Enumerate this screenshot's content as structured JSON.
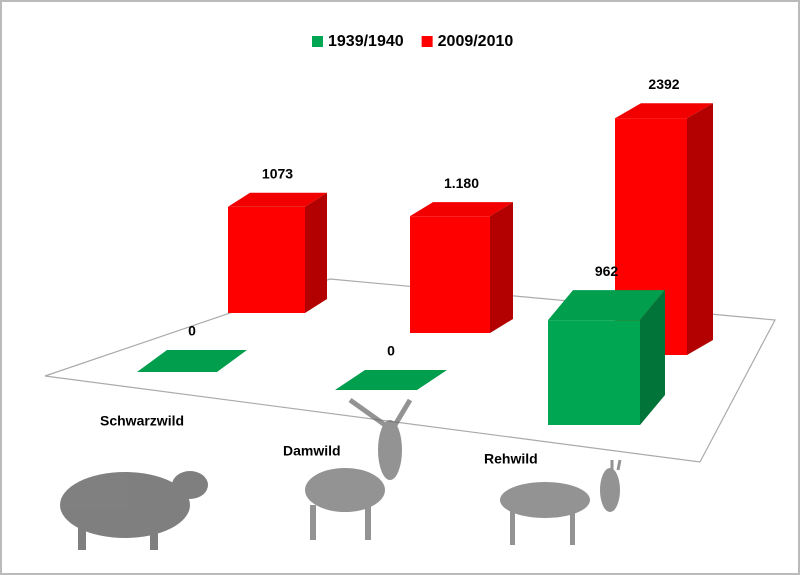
{
  "chart_data": {
    "type": "bar3d",
    "categories": [
      "Schwarzwild",
      "Damwild",
      "Rehwild"
    ],
    "series": [
      {
        "name": "1939/1940",
        "color": "#00a651",
        "values": [
          0,
          0,
          962
        ]
      },
      {
        "name": "2009/2010",
        "color": "#ff0000",
        "values": [
          1073,
          1180,
          2392
        ],
        "value_labels": [
          "1073",
          "1.180",
          "2392"
        ]
      }
    ]
  }
}
